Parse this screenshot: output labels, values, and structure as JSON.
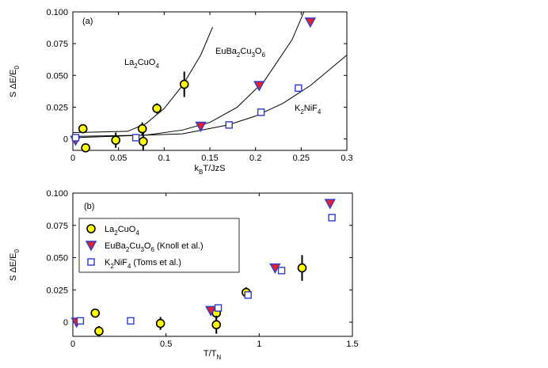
{
  "chart_data": [
    {
      "type": "scatter",
      "panel_label": "(a)",
      "xlabel": [
        "k",
        "B",
        "T/JzS"
      ],
      "ylabel": [
        "S  ΔE/E",
        "0"
      ],
      "xlim": [
        0,
        0.3
      ],
      "ylim": [
        -0.009,
        0.1
      ],
      "xticks": [
        0,
        0.05,
        0.1,
        0.15,
        0.2,
        0.25,
        0.3
      ],
      "yticks": [
        0,
        0.025,
        {
          "value": 0.05,
          "label": "0.050"
        },
        0.075,
        {
          "value": 0.1,
          "label": "0.100"
        }
      ],
      "series": [
        {
          "marker": "circle",
          "color": "#ffff00",
          "edge": "#000000",
          "x": [
            0.011,
            0.014,
            0.047,
            0.076,
            0.077,
            0.092,
            0.122
          ],
          "values": [
            0.008,
            -0.007,
            -0.001,
            0.008,
            -0.002,
            0.024,
            0.043
          ],
          "errors": [
            0.003,
            0.003,
            0.006,
            0.005,
            0.007,
            0.004,
            0.01
          ]
        },
        {
          "marker": "triangle",
          "color": "#e8202a",
          "edge": "#2a3bd0",
          "x": [
            0.003,
            0.14,
            0.204,
            0.26
          ],
          "values": [
            -0.001,
            0.01,
            0.042,
            0.092
          ]
        },
        {
          "marker": "square",
          "color": "#ffffff",
          "edge": "#2a3bd0",
          "x": [
            0.003,
            0.069,
            0.171,
            0.206,
            0.247
          ],
          "values": [
            0.001,
            0.001,
            0.011,
            0.021,
            0.04
          ]
        }
      ],
      "fits": [
        {
          "color": "#000000",
          "x": [
            0,
            0.06,
            0.08,
            0.1,
            0.12,
            0.14,
            0.153
          ],
          "values": [
            0.005,
            0.006,
            0.012,
            0.024,
            0.042,
            0.066,
            0.088
          ]
        },
        {
          "color": "#000000",
          "x": [
            0,
            0.08,
            0.12,
            0.15,
            0.18,
            0.21,
            0.24,
            0.253
          ],
          "values": [
            0.002,
            0.003,
            0.007,
            0.013,
            0.025,
            0.046,
            0.078,
            0.1
          ]
        },
        {
          "color": "#000000",
          "x": [
            0,
            0.12,
            0.17,
            0.2,
            0.23,
            0.26,
            0.3
          ],
          "values": [
            0.001,
            0.004,
            0.011,
            0.018,
            0.028,
            0.042,
            0.066
          ]
        }
      ],
      "annotations": [
        [
          "La",
          "2",
          "CuO",
          "4"
        ],
        [
          "EuBa",
          "2",
          "Cu",
          "3",
          "O",
          "6"
        ],
        [
          "K",
          "2",
          "NiF",
          "4"
        ]
      ]
    },
    {
      "type": "scatter",
      "panel_label": "(b)",
      "xlabel": [
        "T/T",
        "N"
      ],
      "ylabel": [
        "S  ΔE/E",
        "0"
      ],
      "xlim": [
        0,
        1.5
      ],
      "ylim": [
        -0.011,
        0.1
      ],
      "xticks": [
        0,
        0.5,
        1,
        1.5
      ],
      "yticks": [
        0,
        0.025,
        {
          "value": 0.05,
          "label": "0.050"
        },
        0.075,
        {
          "value": 0.1,
          "label": "0.100"
        }
      ],
      "legend": "upper left",
      "series": [
        {
          "name": [
            "La",
            "2",
            "CuO",
            "4"
          ],
          "marker": "circle",
          "color": "#ffff00",
          "edge": "#000000",
          "x": [
            0.12,
            0.14,
            0.47,
            0.77,
            0.77,
            0.93,
            1.23
          ],
          "values": [
            0.007,
            -0.007,
            -0.001,
            0.007,
            -0.002,
            0.023,
            0.042
          ],
          "errors": [
            0.003,
            0.004,
            0.005,
            0.005,
            0.007,
            0.004,
            0.01
          ]
        },
        {
          "name": [
            "EuBa",
            "2",
            "Cu",
            "3",
            "O",
            "6",
            " (Knoll et al.)"
          ],
          "marker": "triangle",
          "color": "#e8202a",
          "edge": "#2a3bd0",
          "x": [
            0.02,
            0.74,
            1.085,
            1.38
          ],
          "values": [
            0,
            0.009,
            0.042,
            0.092
          ]
        },
        {
          "name": [
            "K",
            "2",
            "NiF",
            "4",
            " (Toms et al.)"
          ],
          "marker": "square",
          "color": "#ffffff",
          "edge": "#2a3bd0",
          "x": [
            0.04,
            0.31,
            0.78,
            0.94,
            1.12,
            1.39
          ],
          "values": [
            0.001,
            0.001,
            0.011,
            0.021,
            0.04,
            0.081
          ]
        }
      ]
    }
  ]
}
